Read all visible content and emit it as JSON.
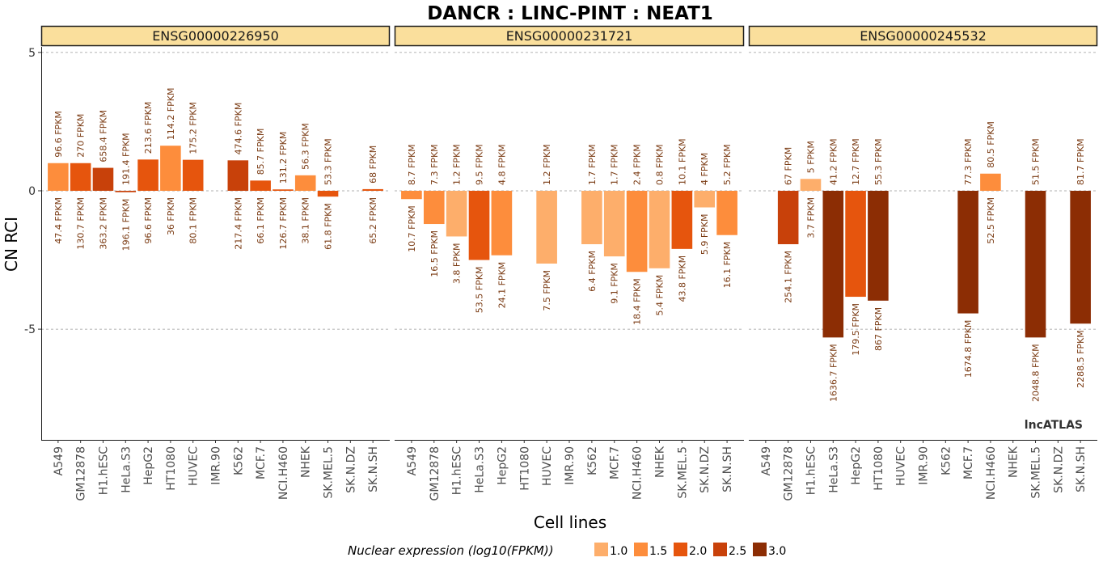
{
  "chart_data": {
    "type": "bar",
    "title": "DANCR : LINC-PINT : NEAT1",
    "xlabel": "Cell lines",
    "ylabel": "CN RCI",
    "ylim": [
      -9,
      5.2
    ],
    "yticks": [
      5,
      0,
      -5
    ],
    "grid": "horizontal dashed at ticks",
    "watermark": "lncATLAS",
    "categories": [
      "A549",
      "GM12878",
      "H1.hESC",
      "HeLa.S3",
      "HepG2",
      "HT1080",
      "HUVEC",
      "IMR.90",
      "K562",
      "MCF.7",
      "NCI.H460",
      "NHEK",
      "SK.MEL.5",
      "SK.N.DZ",
      "SK.N.SH"
    ],
    "legend": {
      "title": "Nuclear expression (log10(FPKM))",
      "placement": "bottom",
      "entries": [
        {
          "label": "1.0",
          "color": "#fdae6b"
        },
        {
          "label": "1.5",
          "color": "#fd8d3c"
        },
        {
          "label": "2.0",
          "color": "#e6550d"
        },
        {
          "label": "2.5",
          "color": "#c8410a"
        },
        {
          "label": "3.0",
          "color": "#8c2d04"
        }
      ]
    },
    "panels": [
      {
        "name": "ENSG00000226950",
        "bars": [
          {
            "cell": "A549",
            "rci": 1.0,
            "log10_fpkm": 1.7,
            "top_label": "96.6 FPKM",
            "bottom_label": "47.4 FPKM"
          },
          {
            "cell": "GM12878",
            "rci": 1.0,
            "log10_fpkm": 2.1,
            "top_label": "270 FPKM",
            "bottom_label": "130.7 FPKM"
          },
          {
            "cell": "H1.hESC",
            "rci": 0.83,
            "log10_fpkm": 2.6,
            "top_label": "658.4 FPKM",
            "bottom_label": "363.2 FPKM"
          },
          {
            "cell": "HeLa.S3",
            "rci": -0.05,
            "log10_fpkm": 2.3,
            "top_label": "191.4 FPKM",
            "bottom_label": "196.1 FPKM"
          },
          {
            "cell": "HepG2",
            "rci": 1.13,
            "log10_fpkm": 2.0,
            "top_label": "213.6 FPKM",
            "bottom_label": "96.6 FPKM"
          },
          {
            "cell": "HT1080",
            "rci": 1.63,
            "log10_fpkm": 1.6,
            "top_label": "114.2 FPKM",
            "bottom_label": "36 FPKM"
          },
          {
            "cell": "HUVEC",
            "rci": 1.12,
            "log10_fpkm": 1.9,
            "top_label": "175.2 FPKM",
            "bottom_label": "80.1 FPKM"
          },
          {
            "cell": "IMR.90",
            "rci": null,
            "log10_fpkm": null,
            "top_label": "",
            "bottom_label": ""
          },
          {
            "cell": "K562",
            "rci": 1.1,
            "log10_fpkm": 2.3,
            "top_label": "474.6 FPKM",
            "bottom_label": "217.4 FPKM"
          },
          {
            "cell": "MCF.7",
            "rci": 0.37,
            "log10_fpkm": 1.8,
            "top_label": "85.7 FPKM",
            "bottom_label": "66.1 FPKM"
          },
          {
            "cell": "NCI.H460",
            "rci": 0.05,
            "log10_fpkm": 2.1,
            "top_label": "131.2 FPKM",
            "bottom_label": "126.7 FPKM"
          },
          {
            "cell": "NHEK",
            "rci": 0.56,
            "log10_fpkm": 1.6,
            "top_label": "56.3 FPKM",
            "bottom_label": "38.1 FPKM"
          },
          {
            "cell": "SK.MEL.5",
            "rci": -0.21,
            "log10_fpkm": 1.8,
            "top_label": "53.3 FPKM",
            "bottom_label": "61.8 FPKM"
          },
          {
            "cell": "SK.N.DZ",
            "rci": null,
            "log10_fpkm": null,
            "top_label": "",
            "bottom_label": ""
          },
          {
            "cell": "SK.N.SH",
            "rci": 0.06,
            "log10_fpkm": 1.8,
            "top_label": "68 FPKM",
            "bottom_label": "65.2 FPKM"
          }
        ]
      },
      {
        "name": "ENSG00000231721",
        "bars": [
          {
            "cell": "A549",
            "rci": -0.3,
            "log10_fpkm": 1.5,
            "top_label": "8.7 FPKM",
            "bottom_label": "10.7 FPKM"
          },
          {
            "cell": "GM12878",
            "rci": -1.2,
            "log10_fpkm": 1.5,
            "top_label": "7.3 FPKM",
            "bottom_label": "16.5 FPKM"
          },
          {
            "cell": "H1.hESC",
            "rci": -1.65,
            "log10_fpkm": 1.0,
            "top_label": "1.2 FPKM",
            "bottom_label": "3.8 FPKM"
          },
          {
            "cell": "HeLa.S3",
            "rci": -2.5,
            "log10_fpkm": 2.0,
            "top_label": "9.5 FPKM",
            "bottom_label": "53.5 FPKM"
          },
          {
            "cell": "HepG2",
            "rci": -2.33,
            "log10_fpkm": 1.6,
            "top_label": "4.8 FPKM",
            "bottom_label": "24.1 FPKM"
          },
          {
            "cell": "HT1080",
            "rci": null,
            "log10_fpkm": null,
            "top_label": "",
            "bottom_label": ""
          },
          {
            "cell": "HUVEC",
            "rci": -2.63,
            "log10_fpkm": 1.1,
            "top_label": "1.2 FPKM",
            "bottom_label": "7.5 FPKM"
          },
          {
            "cell": "IMR.90",
            "rci": null,
            "log10_fpkm": null,
            "top_label": "",
            "bottom_label": ""
          },
          {
            "cell": "K562",
            "rci": -1.93,
            "log10_fpkm": 1.1,
            "top_label": "1.7 FPKM",
            "bottom_label": "6.4 FPKM"
          },
          {
            "cell": "MCF.7",
            "rci": -2.37,
            "log10_fpkm": 1.2,
            "top_label": "1.7 FPKM",
            "bottom_label": "9.1 FPKM"
          },
          {
            "cell": "NCI.H460",
            "rci": -2.93,
            "log10_fpkm": 1.5,
            "top_label": "2.4 FPKM",
            "bottom_label": "18.4 FPKM"
          },
          {
            "cell": "NHEK",
            "rci": -2.8,
            "log10_fpkm": 1.0,
            "top_label": "0.8 FPKM",
            "bottom_label": "5.4 FPKM"
          },
          {
            "cell": "SK.MEL.5",
            "rci": -2.1,
            "log10_fpkm": 1.9,
            "top_label": "10.1 FPKM",
            "bottom_label": "43.8 FPKM"
          },
          {
            "cell": "SK.N.DZ",
            "rci": -0.6,
            "log10_fpkm": 1.0,
            "top_label": "4 FPKM",
            "bottom_label": "5.9 FPKM"
          },
          {
            "cell": "SK.N.SH",
            "rci": -1.6,
            "log10_fpkm": 1.5,
            "top_label": "5.2 FPKM",
            "bottom_label": "16.1 FPKM"
          }
        ]
      },
      {
        "name": "ENSG00000245532",
        "bars": [
          {
            "cell": "A549",
            "rci": null,
            "log10_fpkm": null,
            "top_label": "",
            "bottom_label": ""
          },
          {
            "cell": "GM12878",
            "rci": -1.93,
            "log10_fpkm": 2.4,
            "top_label": "67 FPKM",
            "bottom_label": "254.1 FPKM"
          },
          {
            "cell": "H1.hESC",
            "rci": 0.43,
            "log10_fpkm": 1.0,
            "top_label": "5 FPKM",
            "bottom_label": "3.7 FPKM"
          },
          {
            "cell": "HeLa.S3",
            "rci": -5.3,
            "log10_fpkm": 3.2,
            "top_label": "41.2 FPKM",
            "bottom_label": "1636.7 FPKM"
          },
          {
            "cell": "HepG2",
            "rci": -3.83,
            "log10_fpkm": 2.25,
            "top_label": "12.7 FPKM",
            "bottom_label": "179.5 FPKM"
          },
          {
            "cell": "HT1080",
            "rci": -3.97,
            "log10_fpkm": 2.9,
            "top_label": "55.3 FPKM",
            "bottom_label": "867 FPKM"
          },
          {
            "cell": "HUVEC",
            "rci": null,
            "log10_fpkm": null,
            "top_label": "",
            "bottom_label": ""
          },
          {
            "cell": "IMR.90",
            "rci": null,
            "log10_fpkm": null,
            "top_label": "",
            "bottom_label": ""
          },
          {
            "cell": "K562",
            "rci": null,
            "log10_fpkm": null,
            "top_label": "",
            "bottom_label": ""
          },
          {
            "cell": "MCF.7",
            "rci": -4.43,
            "log10_fpkm": 3.2,
            "top_label": "77.3 FPKM",
            "bottom_label": "1674.8 FPKM"
          },
          {
            "cell": "NCI.H460",
            "rci": 0.62,
            "log10_fpkm": 1.7,
            "top_label": "80.5 FPKM",
            "bottom_label": "52.5 FPKM"
          },
          {
            "cell": "NHEK",
            "rci": null,
            "log10_fpkm": null,
            "top_label": "",
            "bottom_label": ""
          },
          {
            "cell": "SK.MEL.5",
            "rci": -5.3,
            "log10_fpkm": 3.3,
            "top_label": "51.5 FPKM",
            "bottom_label": "2048.8 FPKM"
          },
          {
            "cell": "SK.N.DZ",
            "rci": null,
            "log10_fpkm": null,
            "top_label": "",
            "bottom_label": ""
          },
          {
            "cell": "SK.N.SH",
            "rci": -4.8,
            "log10_fpkm": 3.35,
            "top_label": "81.7 FPKM",
            "bottom_label": "2288.5 FPKM"
          }
        ]
      }
    ]
  }
}
